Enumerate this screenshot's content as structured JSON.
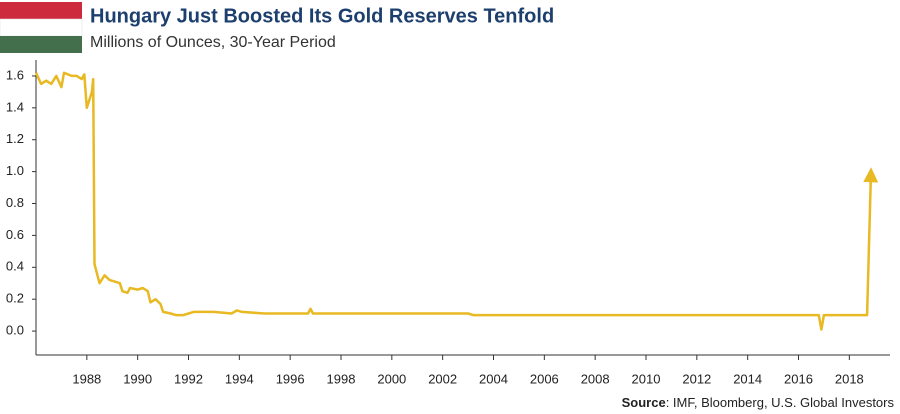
{
  "chart_data": {
    "type": "line",
    "title": "Hungary Just Boosted Its Gold Reserves Tenfold",
    "subtitle": "Millions of Ounces, 30-Year Period",
    "source_label": "Source",
    "source_text": ": IMF, Bloomberg, U.S. Global Investors",
    "x": [
      1986.0,
      1986.2,
      1986.4,
      1986.6,
      1986.8,
      1987.0,
      1987.1,
      1987.4,
      1987.6,
      1987.8,
      1987.9,
      1988.0,
      1988.1,
      1988.2,
      1988.25,
      1988.3,
      1988.5,
      1988.7,
      1988.9,
      1989.1,
      1989.3,
      1989.4,
      1989.6,
      1989.7,
      1990.0,
      1990.2,
      1990.4,
      1990.5,
      1990.7,
      1990.9,
      1991.0,
      1991.3,
      1991.5,
      1991.8,
      1992.0,
      1992.2,
      1993.0,
      1993.7,
      1993.9,
      1994.1,
      1995.0,
      1996.0,
      1996.7,
      1996.8,
      1996.9,
      2003.0,
      2003.2,
      2016.8,
      2016.9,
      2017.0,
      2018.7,
      2018.85
    ],
    "values": [
      1.62,
      1.55,
      1.57,
      1.55,
      1.6,
      1.53,
      1.62,
      1.6,
      1.6,
      1.58,
      1.61,
      1.4,
      1.45,
      1.5,
      1.58,
      0.42,
      0.3,
      0.35,
      0.32,
      0.31,
      0.3,
      0.25,
      0.24,
      0.27,
      0.26,
      0.27,
      0.25,
      0.18,
      0.2,
      0.17,
      0.12,
      0.11,
      0.1,
      0.1,
      0.11,
      0.12,
      0.12,
      0.11,
      0.13,
      0.12,
      0.11,
      0.11,
      0.11,
      0.14,
      0.11,
      0.11,
      0.1,
      0.1,
      0.01,
      0.1,
      0.1,
      0.98
    ],
    "color": "#e8b923",
    "xlim": [
      1986,
      2019.6
    ],
    "xticks": [
      1988,
      1990,
      1992,
      1994,
      1996,
      1998,
      2000,
      2002,
      2004,
      2006,
      2008,
      2010,
      2012,
      2014,
      2016,
      2018
    ],
    "ylim": [
      -0.15,
      1.7
    ],
    "yticks": [
      {
        "value": 0,
        "label": "0.0"
      },
      0.2,
      0.4,
      0.6,
      0.8,
      {
        "value": 1,
        "label": "1.0"
      },
      1.2,
      1.4,
      1.6
    ],
    "grid": false
  }
}
